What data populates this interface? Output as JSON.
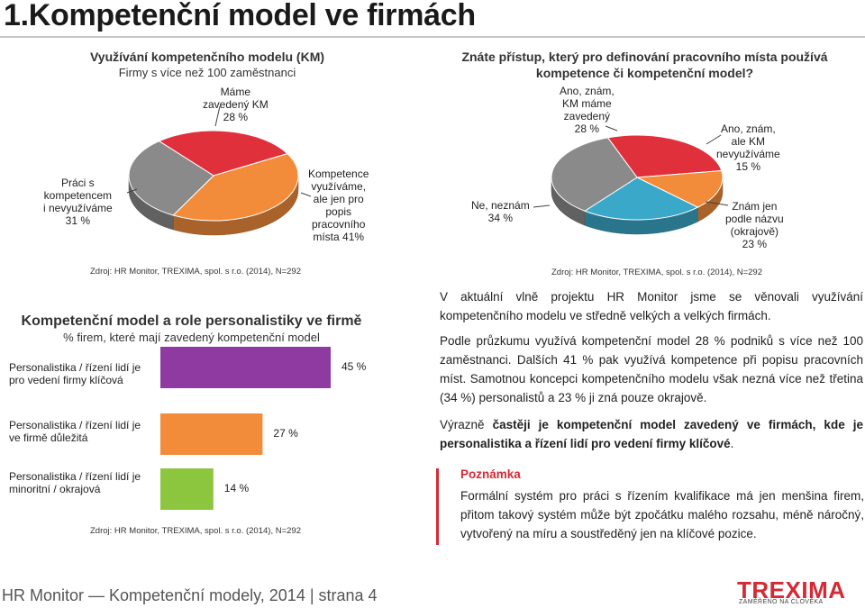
{
  "page": {
    "title": "1.Kompetenční model ve firmách",
    "footer": "HR Monitor — Kompetenční modely, 2014 | strana 4"
  },
  "logo": {
    "word": "TREXIMA",
    "tagline": "ZAMĚŘENO NA ČLOVĚKA"
  },
  "colors": {
    "red": "#e0303c",
    "orange": "#f28c3a",
    "grey": "#8a8a8a",
    "blue": "#3aa8c8",
    "purple": "#8e3aa0",
    "green": "#8cc63e",
    "accent": "#d42a35"
  },
  "chart_data": [
    {
      "type": "pie",
      "title": "Využívání kompetenčního modelu (KM)",
      "subtitle": "Firmy s více než 100 zaměstnanci",
      "slices": [
        {
          "label": [
            "Máme",
            "zavedený KM",
            "28 %"
          ],
          "value": 28,
          "color": "#e0303c"
        },
        {
          "label": [
            "Kompetence",
            "využíváme,",
            "ale jen pro",
            "popis",
            "pracovního",
            "místa 41%"
          ],
          "value": 41,
          "color": "#f28c3a"
        },
        {
          "label": [
            "Práci s",
            "kompetencem",
            "i nevyužíváme",
            "31 %"
          ],
          "value": 31,
          "color": "#8a8a8a"
        }
      ],
      "source": "Zdroj: HR  Monitor, TREXIMA, spol. s r.o.  (2014), N=292"
    },
    {
      "type": "pie",
      "title": [
        "Znáte přístup, který pro definování pracovního místa používá",
        "kompetence či kompetenční model?"
      ],
      "slices": [
        {
          "label": [
            "Ano, znám,",
            "KM máme",
            "zavedený",
            "28 %"
          ],
          "value": 28,
          "color": "#e0303c"
        },
        {
          "label": [
            "Ano, znám,",
            "ale KM",
            "nevyužíváme",
            "15 %"
          ],
          "value": 15,
          "color": "#f28c3a"
        },
        {
          "label": [
            "Znám jen",
            "podle názvu",
            "(okrajově)",
            "23 %"
          ],
          "value": 23,
          "color": "#3aa8c8"
        },
        {
          "label": [
            "Ne, neznám",
            "34 %"
          ],
          "value": 34,
          "color": "#8a8a8a"
        }
      ],
      "source": "Zdroj: HR  Monitor, TREXIMA, spol. s r.o.  (2014), N=292"
    },
    {
      "type": "bar",
      "title": "Kompetenční model a role personalistiky ve firmě",
      "subtitle": "% firem, které mají zavedený kompetenční model",
      "categories": [
        [
          "Personalistika / řízení lidí je",
          "pro vedení firmy klíčová"
        ],
        [
          "Personalistika / řízení lidí je",
          "ve firmě důležitá"
        ],
        [
          "Personalistika / řízení lidí je",
          "minoritní / okrajová"
        ]
      ],
      "values": [
        45,
        27,
        14
      ],
      "value_labels": [
        "45 %",
        "27 %",
        "14 %"
      ],
      "colors": [
        "#8e3aa0",
        "#f28c3a",
        "#8cc63e"
      ],
      "xlim": [
        0,
        100
      ],
      "source": "Zdroj: HR  Monitor, TREXIMA, spol. s r.o.  (2014), N=292"
    }
  ],
  "text": {
    "p1": "V aktuální vlně projektu HR Monitor jsme se věnovali využívání kompetenčního modelu ve středně velkých a velkých firmách.",
    "p2": "Podle průzkumu využívá kompetenční model 28 % podniků s více než 100 zaměstnanci. Dalších 41 % pak využívá kompetence při popisu pracovních míst. Samotnou koncepci kompetenčního modelu však nezná více než třetina (34 %) personalistů a 23 % ji zná pouze okrajově.",
    "p3_a": "Výrazně ",
    "p3_b": "častěji je kompetenční model zavedený ve firmách, kde je personalistika a řízení lidí pro vedení firmy klíčové",
    "p3_c": ".",
    "note_title": "Poznámka",
    "note_text": "Formální systém pro práci s řízením kvalifikace má jen menšina firem, přitom takový systém může být zpočátku malého rozsahu, méně náročný, vytvořený na míru a soustředěný jen na klíčové pozice."
  }
}
